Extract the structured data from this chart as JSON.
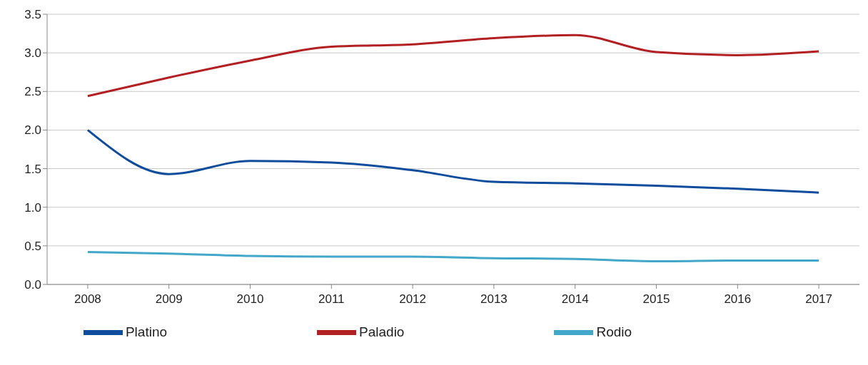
{
  "chart_data": {
    "type": "line",
    "categories": [
      "2008",
      "2009",
      "2010",
      "2011",
      "2012",
      "2013",
      "2014",
      "2015",
      "2016",
      "2017"
    ],
    "series": [
      {
        "name": "Platino",
        "color": "#0f4c9b",
        "values": [
          2.0,
          1.43,
          1.6,
          1.58,
          1.48,
          1.33,
          1.31,
          1.28,
          1.24,
          1.19
        ]
      },
      {
        "name": "Paladio",
        "color": "#b22024",
        "values": [
          2.44,
          2.68,
          2.9,
          3.08,
          3.11,
          3.19,
          3.23,
          3.01,
          2.97,
          3.02
        ]
      },
      {
        "name": "Rodio",
        "color": "#43a7c9",
        "values": [
          0.42,
          0.4,
          0.37,
          0.36,
          0.36,
          0.34,
          0.33,
          0.3,
          0.31,
          0.31
        ]
      }
    ],
    "ylim": [
      0,
      3.5
    ],
    "yticks": [
      {
        "value": 0,
        "label": "0.0"
      },
      0.5,
      {
        "value": 1,
        "label": "1.0"
      },
      1.5,
      {
        "value": 2,
        "label": "2.0"
      },
      2.5,
      {
        "value": 3,
        "label": "3.0"
      },
      3.5
    ],
    "grid": "y",
    "legend": "bottom",
    "marker": "none",
    "line_style": "solid"
  }
}
